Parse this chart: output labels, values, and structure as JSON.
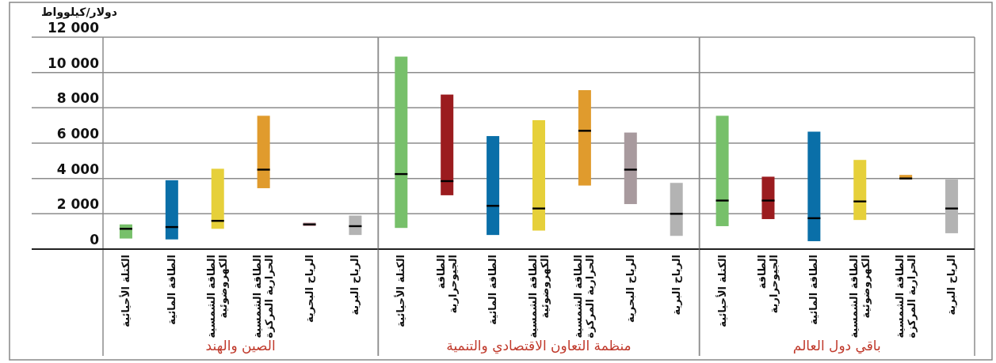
{
  "chart_data": [
    {
      "type": "box",
      "ylabel": "دولار/كيلوواط",
      "xlabel": "الصين والهند",
      "grid": "y",
      "categories": [
        "الكتلة الأحيائية",
        "الطاقة المائية",
        "الطاقة الشمسية الكهروضوئية",
        "الطاقة الشمسية الحرارية المركزة",
        "الرياح البحرية",
        "الرياح البرية"
      ],
      "ylim": [
        0,
        12000
      ],
      "yticks": [
        {
          "value": 0,
          "label": "0"
        },
        {
          "value": 2000,
          "label": "2 000"
        },
        {
          "value": 4000,
          "label": "4 000"
        },
        {
          "value": 6000,
          "label": "6 000"
        },
        {
          "value": 8000,
          "label": "8 000"
        },
        {
          "value": 10000,
          "label": "10 000"
        },
        {
          "value": 12000,
          "label": "12 000"
        }
      ],
      "colors": [
        "#77c06a",
        "#0a6fa8",
        "#e6d03a",
        "#e09b2d",
        "#c9a0a8",
        "#b3b3b3"
      ],
      "boxes": [
        {
          "low": 600,
          "q1": 600,
          "median": 1150,
          "q3": 1400,
          "high": 1400
        },
        {
          "low": 550,
          "q1": 550,
          "median": 1250,
          "q3": 3900,
          "high": 3900
        },
        {
          "low": 1150,
          "q1": 1150,
          "median": 1600,
          "q3": 4550,
          "high": 4550
        },
        {
          "low": 3450,
          "q1": 3450,
          "median": 4500,
          "q3": 7550,
          "high": 7550
        },
        {
          "low": 1300,
          "q1": 1300,
          "median": 1400,
          "q3": 1500,
          "high": 1500
        },
        {
          "low": 800,
          "q1": 800,
          "median": 1300,
          "q3": 1900,
          "high": 1900
        }
      ]
    },
    {
      "type": "box",
      "xlabel": "منظمة التعاون الاقتصادي والتنمية",
      "grid": "y",
      "tick_labels": "x",
      "categories": [
        "الكتلة الأحيائية",
        "الطاقة الجيوحرارية",
        "الطاقة المائية",
        "الطاقة الشمسية الكهروضوئية",
        "الطاقة الشمسية الحرارية المركزة",
        "الرياح البحرية",
        "الرياح البرية"
      ],
      "ylim": [
        0,
        12000
      ],
      "yticks": [
        0,
        2000,
        4000,
        6000,
        8000,
        10000,
        12000
      ],
      "colors": [
        "#77c06a",
        "#9b1c1f",
        "#0a6fa8",
        "#e6d03a",
        "#e09b2d",
        "#a89a9e",
        "#b3b3b3"
      ],
      "boxes": [
        {
          "low": 1200,
          "q1": 1200,
          "median": 4250,
          "q3": 10900,
          "high": 10900
        },
        {
          "low": 3050,
          "q1": 3050,
          "median": 3850,
          "q3": 8750,
          "high": 8750
        },
        {
          "low": 800,
          "q1": 800,
          "median": 2450,
          "q3": 6400,
          "high": 6400
        },
        {
          "low": 1050,
          "q1": 1050,
          "median": 2300,
          "q3": 7300,
          "high": 7300
        },
        {
          "low": 3600,
          "q1": 3600,
          "median": 6700,
          "q3": 9000,
          "high": 9000
        },
        {
          "low": 2550,
          "q1": 2550,
          "median": 4500,
          "q3": 6600,
          "high": 6600
        },
        {
          "low": 750,
          "q1": 750,
          "median": 2000,
          "q3": 3750,
          "high": 3750
        }
      ]
    },
    {
      "type": "box",
      "xlabel": "باقي دول العالم",
      "grid": "y",
      "tick_labels": "x",
      "categories": [
        "الكتلة الأحيائية",
        "الطاقة الجيوحرارية",
        "الطاقة المائية",
        "الطاقة الشمسية الكهروضوئية",
        "الطاقة الشمسية الحرارية المركزة",
        "الرياح البرية"
      ],
      "ylim": [
        0,
        12000
      ],
      "yticks": [
        0,
        2000,
        4000,
        6000,
        8000,
        10000,
        12000
      ],
      "colors": [
        "#77c06a",
        "#9b1c1f",
        "#0a6fa8",
        "#e6d03a",
        "#e09b2d",
        "#b3b3b3"
      ],
      "boxes": [
        {
          "low": 1300,
          "q1": 1300,
          "median": 2750,
          "q3": 7550,
          "high": 7550
        },
        {
          "low": 1700,
          "q1": 1700,
          "median": 2750,
          "q3": 4100,
          "high": 4100
        },
        {
          "low": 450,
          "q1": 450,
          "median": 1750,
          "q3": 6650,
          "high": 6650
        },
        {
          "low": 1650,
          "q1": 1650,
          "median": 2700,
          "q3": 5050,
          "high": 5050
        },
        {
          "low": 3950,
          "q1": 3950,
          "median": 4000,
          "q3": 4200,
          "high": 4200
        },
        {
          "low": 900,
          "q1": 900,
          "median": 2300,
          "q3": 3950,
          "high": 3950
        }
      ]
    }
  ]
}
